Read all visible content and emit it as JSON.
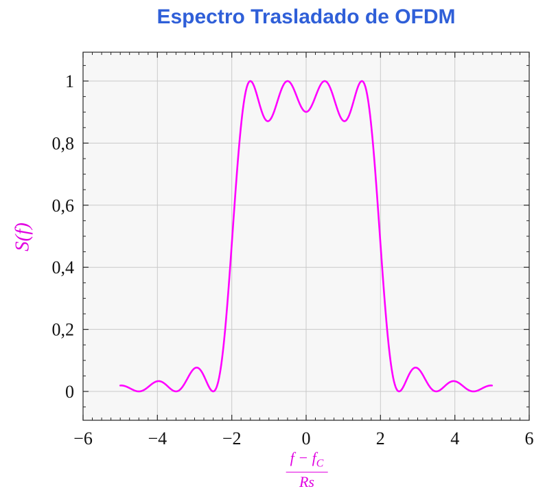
{
  "title": {
    "text": "Espectro Trasladado de OFDM",
    "color": "#2f5fd8"
  },
  "y_axis_label": {
    "text": "S(f)",
    "color": "#E100E1"
  },
  "x_axis_label": {
    "numerator_f1": "f",
    "numerator_minus": " − ",
    "numerator_f2": "f",
    "numerator_subscript": "C",
    "denominator": "Rs",
    "color": "#E100E1"
  },
  "chart_data": {
    "type": "line",
    "title": "Espectro Trasladado de OFDM",
    "xlabel": "(f − f_C) / Rs",
    "ylabel": "S(f)",
    "xlim": [
      -6,
      6
    ],
    "ylim": [
      -0.093,
      1.093
    ],
    "grid": true,
    "legend": "none",
    "x_ticks": [
      -6,
      -4,
      -2,
      0,
      2,
      4,
      6
    ],
    "x_tick_labels": [
      "−6",
      "−4",
      "−2",
      "0",
      "2",
      "4",
      "6"
    ],
    "y_ticks": [
      0,
      0.2,
      0.4,
      0.6,
      0.8,
      1
    ],
    "y_tick_labels": [
      "0",
      "0,2",
      "0,4",
      "0,6",
      "0,8",
      "1"
    ],
    "x_minor_step": 0.25,
    "y_minor_step": 0.05,
    "colors": {
      "plot_bg": "#f7f7f7",
      "grid": "#c9c9c9",
      "axis": "#262626",
      "tick_text": "#111111"
    },
    "series": [
      {
        "name": "S(f)",
        "color": "#FF00FF",
        "line_width": 2.6,
        "formula": "S(f) = sum over subcarriers k of sinc^2(f - k), sinc(t)=sin(pi t)/(pi t)",
        "subcarriers": [
          -1.5,
          -0.5,
          0.5,
          1.5
        ],
        "x_range": [
          -5,
          5
        ],
        "sample_step": 0.02,
        "key_points": [
          {
            "x": -5.0,
            "y": 0.019
          },
          {
            "x": -4.5,
            "y": 0.0
          },
          {
            "x": -4.0,
            "y": 0.033
          },
          {
            "x": -3.5,
            "y": 0.0
          },
          {
            "x": -3.0,
            "y": 0.074
          },
          {
            "x": -2.5,
            "y": 0.0
          },
          {
            "x": -2.0,
            "y": 0.474
          },
          {
            "x": -1.5,
            "y": 1.0
          },
          {
            "x": -1.0,
            "y": 0.871
          },
          {
            "x": -0.5,
            "y": 1.0
          },
          {
            "x": 0.0,
            "y": 0.901
          },
          {
            "x": 0.5,
            "y": 1.0
          },
          {
            "x": 1.0,
            "y": 0.871
          },
          {
            "x": 1.5,
            "y": 1.0
          },
          {
            "x": 2.0,
            "y": 0.474
          },
          {
            "x": 2.5,
            "y": 0.0
          },
          {
            "x": 3.0,
            "y": 0.074
          },
          {
            "x": 3.5,
            "y": 0.0
          },
          {
            "x": 4.0,
            "y": 0.033
          },
          {
            "x": 4.5,
            "y": 0.0
          },
          {
            "x": 5.0,
            "y": 0.019
          }
        ]
      }
    ]
  }
}
